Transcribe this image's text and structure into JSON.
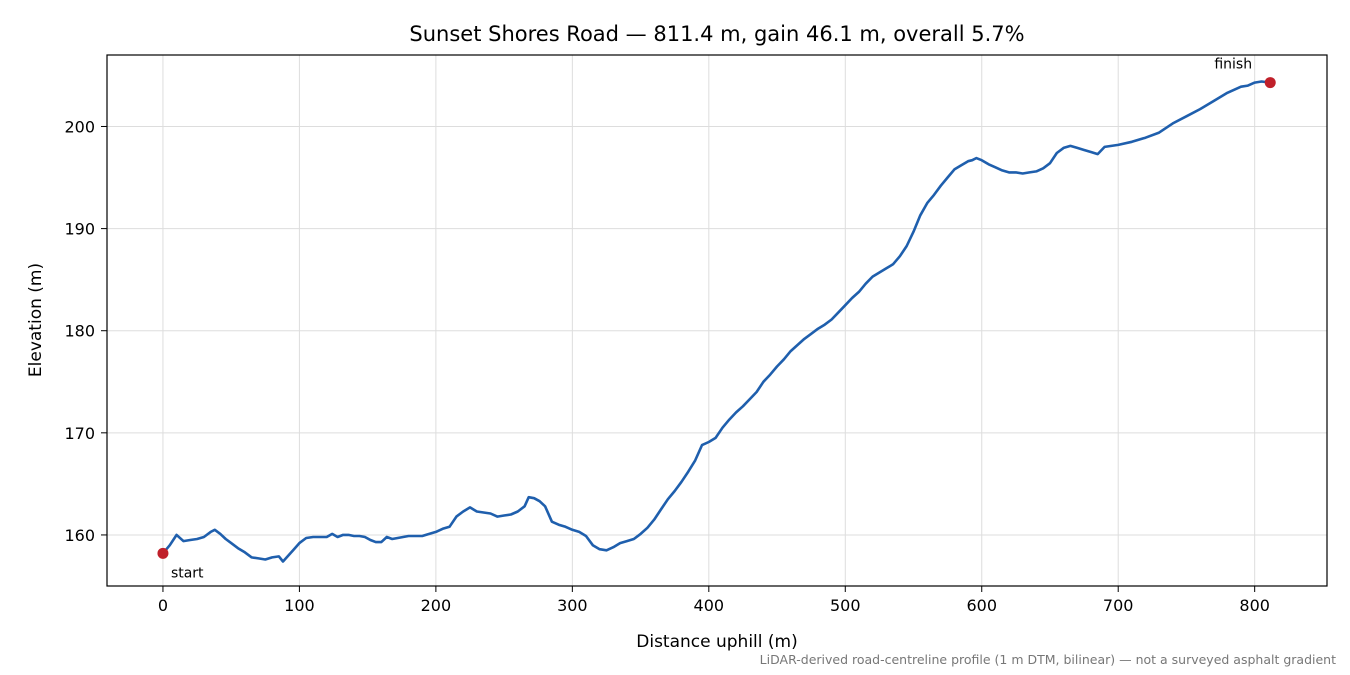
{
  "chart_data": {
    "type": "line",
    "title": "Sunset Shores Road — 811.4 m, gain 46.1 m, overall 5.7%",
    "xlabel": "Distance uphill (m)",
    "ylabel": "Elevation (m)",
    "xlim": [
      -41,
      853
    ],
    "ylim": [
      155,
      207
    ],
    "xticks": [
      0,
      100,
      200,
      300,
      400,
      500,
      600,
      700,
      800
    ],
    "yticks": [
      160,
      170,
      180,
      190,
      200
    ],
    "grid": true,
    "line_color": "#1f5fad",
    "marker_color": "#c0202a",
    "series": [
      {
        "x": [
          0,
          5,
          10,
          15,
          20,
          25,
          30,
          35,
          38,
          42,
          46,
          50,
          55,
          60,
          65,
          70,
          75,
          80,
          85,
          88,
          92,
          96,
          100,
          105,
          110,
          115,
          120,
          124,
          128,
          132,
          136,
          140,
          144,
          148,
          152,
          156,
          160,
          164,
          168,
          172,
          176,
          180,
          190,
          200,
          205,
          210,
          215,
          220,
          225,
          230,
          235,
          240,
          245,
          250,
          255,
          260,
          265,
          268,
          272,
          276,
          280,
          285,
          290,
          295,
          300,
          305,
          310,
          315,
          320,
          325,
          330,
          335,
          340,
          345,
          350,
          355,
          360,
          365,
          370,
          375,
          380,
          385,
          390,
          395,
          400,
          405,
          410,
          415,
          420,
          425,
          430,
          435,
          440,
          445,
          450,
          455,
          460,
          465,
          470,
          475,
          480,
          485,
          490,
          495,
          500,
          505,
          510,
          515,
          520,
          525,
          530,
          535,
          540,
          545,
          550,
          555,
          560,
          565,
          570,
          575,
          580,
          585,
          590,
          593,
          596,
          600,
          605,
          610,
          615,
          620,
          625,
          630,
          635,
          640,
          645,
          650,
          655,
          660,
          665,
          670,
          675,
          680,
          685,
          690,
          700,
          710,
          720,
          730,
          740,
          750,
          760,
          770,
          780,
          790,
          795,
          800,
          805,
          811.4
        ],
        "y": [
          158.2,
          159.0,
          160.0,
          159.4,
          159.5,
          159.6,
          159.8,
          160.3,
          160.5,
          160.1,
          159.6,
          159.2,
          158.7,
          158.3,
          157.8,
          157.7,
          157.6,
          157.8,
          157.9,
          157.4,
          158.0,
          158.6,
          159.2,
          159.7,
          159.8,
          159.8,
          159.8,
          160.1,
          159.8,
          160.0,
          160.0,
          159.9,
          159.9,
          159.8,
          159.5,
          159.3,
          159.3,
          159.8,
          159.6,
          159.7,
          159.8,
          159.9,
          159.9,
          160.3,
          160.6,
          160.8,
          161.8,
          162.3,
          162.7,
          162.3,
          162.2,
          162.1,
          161.8,
          161.9,
          162.0,
          162.3,
          162.8,
          163.7,
          163.6,
          163.3,
          162.8,
          161.3,
          161.0,
          160.8,
          160.5,
          160.3,
          159.9,
          159.0,
          158.6,
          158.5,
          158.8,
          159.2,
          159.4,
          159.6,
          160.1,
          160.7,
          161.5,
          162.5,
          163.5,
          164.3,
          165.2,
          166.2,
          167.3,
          168.8,
          169.1,
          169.5,
          170.5,
          171.3,
          172.0,
          172.6,
          173.3,
          174.0,
          175.0,
          175.7,
          176.5,
          177.2,
          178.0,
          178.6,
          179.2,
          179.7,
          180.2,
          180.6,
          181.1,
          181.8,
          182.5,
          183.2,
          183.8,
          184.6,
          185.3,
          185.7,
          186.1,
          186.5,
          187.3,
          188.3,
          189.7,
          191.3,
          192.5,
          193.3,
          194.2,
          195.0,
          195.8,
          196.2,
          196.6,
          196.7,
          196.9,
          196.7,
          196.3,
          196.0,
          195.7,
          195.5,
          195.5,
          195.4,
          195.5,
          195.6,
          195.9,
          196.4,
          197.4,
          197.9,
          198.1,
          197.9,
          197.7,
          197.5,
          197.3,
          198.0,
          198.2,
          198.5,
          198.9,
          199.4,
          200.3,
          201.0,
          201.7,
          202.5,
          203.3,
          203.9,
          204.0,
          204.3,
          204.4,
          204.3
        ]
      }
    ],
    "annotations": {
      "start": {
        "label": "start",
        "x": 0,
        "y": 158.2
      },
      "finish": {
        "label": "finish",
        "x": 811.4,
        "y": 204.3
      }
    },
    "footnote": "LiDAR-derived road-centreline profile (1 m DTM, bilinear) — not a surveyed asphalt gradient"
  }
}
